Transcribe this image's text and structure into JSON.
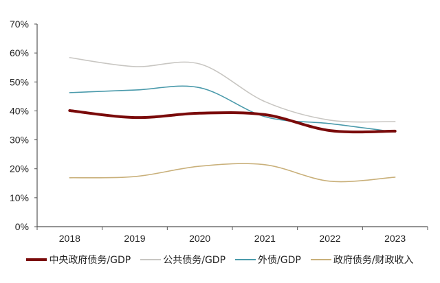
{
  "chart_data": {
    "type": "line",
    "title": "",
    "xlabel": "",
    "ylabel": "",
    "categories": [
      "2018",
      "2019",
      "2020",
      "2021",
      "2022",
      "2023"
    ],
    "ylim": [
      0,
      70
    ],
    "yticks": [
      0,
      10,
      20,
      30,
      40,
      50,
      60,
      70
    ],
    "ytick_format": "{v}%",
    "grid": false,
    "smooth": true,
    "legend_position": "bottom",
    "series": [
      {
        "name": "中央政府债务/GDP",
        "color": "#7a0a0a",
        "width": "thick",
        "values": [
          40.1,
          37.7,
          39.2,
          38.7,
          33.2,
          33.0
        ]
      },
      {
        "name": "公共债务/GDP",
        "color": "#c8c6c2",
        "width": "thin",
        "values": [
          58.4,
          55.3,
          56.2,
          43.2,
          36.8,
          36.3
        ]
      },
      {
        "name": "外债/GDP",
        "color": "#4a9aab",
        "width": "thin",
        "values": [
          46.3,
          47.2,
          48.0,
          38.0,
          35.6,
          32.7
        ]
      },
      {
        "name": "政府债务/财政收入",
        "color": "#c9b07a",
        "width": "thin",
        "values": [
          16.9,
          17.3,
          20.9,
          21.4,
          15.7,
          17.1
        ]
      }
    ]
  }
}
